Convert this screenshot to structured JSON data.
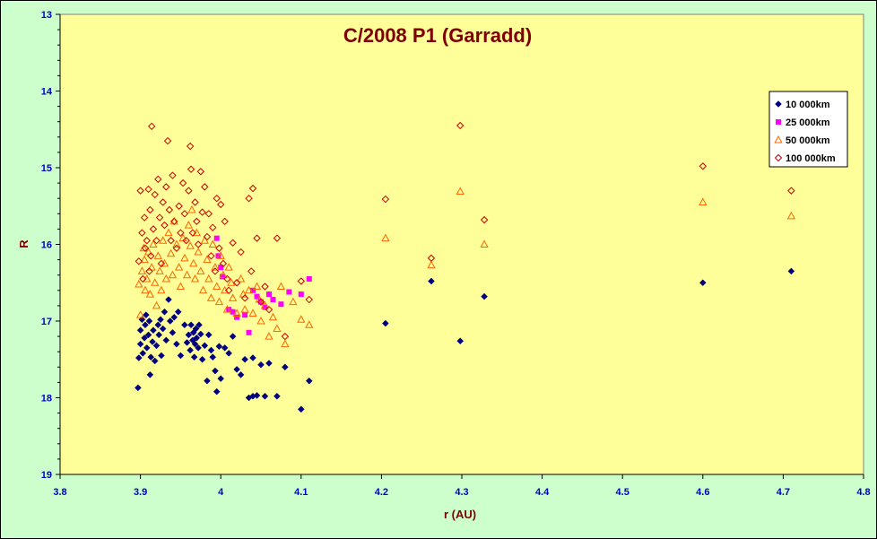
{
  "chart_data": {
    "type": "scatter",
    "title": "C/2008 P1 (Garradd)",
    "xlabel": "r (AU)",
    "ylabel": "R",
    "xlim": [
      3.8,
      4.8
    ],
    "ylim": [
      13,
      19
    ],
    "y_inverted": true,
    "x_ticks": [
      "3.8",
      "3.9",
      "4",
      "4.1",
      "4.2",
      "4.3",
      "4.4",
      "4.5",
      "4.6",
      "4.7",
      "4.8"
    ],
    "y_ticks": [
      "13",
      "14",
      "15",
      "16",
      "17",
      "18",
      "19"
    ],
    "grid": false,
    "legend_position": "right",
    "plot_background": "#ffff99",
    "outer_background": "#ccffcc",
    "series": [
      {
        "name": "10 000km",
        "marker": "diamond-filled",
        "color": "#000080",
        "points": [
          [
            3.897,
            17.87
          ],
          [
            3.898,
            17.48
          ],
          [
            3.9,
            17.3
          ],
          [
            3.9,
            17.12
          ],
          [
            3.902,
            16.98
          ],
          [
            3.903,
            17.42
          ],
          [
            3.905,
            17.22
          ],
          [
            3.906,
            17.05
          ],
          [
            3.907,
            16.92
          ],
          [
            3.908,
            17.35
          ],
          [
            3.91,
            17.18
          ],
          [
            3.911,
            17.0
          ],
          [
            3.912,
            17.7
          ],
          [
            3.913,
            17.47
          ],
          [
            3.915,
            17.27
          ],
          [
            3.916,
            17.12
          ],
          [
            3.918,
            17.52
          ],
          [
            3.92,
            17.32
          ],
          [
            3.922,
            17.05
          ],
          [
            3.923,
            17.18
          ],
          [
            3.925,
            16.98
          ],
          [
            3.926,
            17.45
          ],
          [
            3.928,
            17.1
          ],
          [
            3.93,
            16.88
          ],
          [
            3.932,
            17.25
          ],
          [
            3.935,
            16.72
          ],
          [
            3.937,
            17.0
          ],
          [
            3.94,
            17.15
          ],
          [
            3.942,
            16.95
          ],
          [
            3.945,
            17.3
          ],
          [
            3.947,
            16.88
          ],
          [
            3.95,
            17.45
          ],
          [
            3.955,
            17.05
          ],
          [
            3.958,
            17.28
          ],
          [
            3.96,
            17.18
          ],
          [
            3.962,
            17.38
          ],
          [
            3.963,
            17.05
          ],
          [
            3.965,
            17.25
          ],
          [
            3.966,
            17.15
          ],
          [
            3.967,
            17.47
          ],
          [
            3.968,
            17.3
          ],
          [
            3.969,
            17.1
          ],
          [
            3.97,
            17.22
          ],
          [
            3.972,
            17.35
          ],
          [
            3.973,
            17.05
          ],
          [
            3.975,
            17.17
          ],
          [
            3.977,
            17.5
          ],
          [
            3.98,
            17.32
          ],
          [
            3.983,
            17.78
          ],
          [
            3.985,
            17.18
          ],
          [
            3.988,
            17.38
          ],
          [
            3.99,
            17.47
          ],
          [
            3.993,
            17.65
          ],
          [
            3.995,
            17.92
          ],
          [
            3.998,
            17.33
          ],
          [
            4.0,
            17.75
          ],
          [
            4.005,
            17.35
          ],
          [
            4.01,
            17.42
          ],
          [
            4.015,
            17.2
          ],
          [
            4.02,
            17.63
          ],
          [
            4.025,
            17.7
          ],
          [
            4.03,
            17.5
          ],
          [
            4.035,
            18.0
          ],
          [
            4.04,
            17.98
          ],
          [
            4.04,
            17.48
          ],
          [
            4.045,
            17.97
          ],
          [
            4.05,
            17.57
          ],
          [
            4.055,
            17.98
          ],
          [
            4.06,
            17.55
          ],
          [
            4.07,
            17.98
          ],
          [
            4.08,
            17.6
          ],
          [
            4.1,
            18.15
          ],
          [
            4.11,
            17.78
          ],
          [
            4.205,
            17.03
          ],
          [
            4.262,
            16.48
          ],
          [
            4.298,
            17.26
          ],
          [
            4.328,
            16.68
          ],
          [
            4.6,
            16.5
          ],
          [
            4.71,
            16.35
          ]
        ]
      },
      {
        "name": "25 000km",
        "marker": "square-filled",
        "color": "#ff00ff",
        "points": [
          [
            3.995,
            15.92
          ],
          [
            3.997,
            16.15
          ],
          [
            4.0,
            16.3
          ],
          [
            4.002,
            16.42
          ],
          [
            4.01,
            16.85
          ],
          [
            4.015,
            16.88
          ],
          [
            4.02,
            16.95
          ],
          [
            4.03,
            16.92
          ],
          [
            4.035,
            17.15
          ],
          [
            4.04,
            16.6
          ],
          [
            4.045,
            16.68
          ],
          [
            4.05,
            16.75
          ],
          [
            4.055,
            16.82
          ],
          [
            4.06,
            16.65
          ],
          [
            4.065,
            16.72
          ],
          [
            4.075,
            16.78
          ],
          [
            4.085,
            16.62
          ],
          [
            4.1,
            16.65
          ],
          [
            4.11,
            16.45
          ]
        ]
      },
      {
        "name": "50 000km",
        "marker": "triangle-open",
        "color": "#ff6600",
        "points": [
          [
            3.898,
            16.52
          ],
          [
            3.9,
            16.92
          ],
          [
            3.902,
            16.35
          ],
          [
            3.904,
            16.05
          ],
          [
            3.905,
            16.2
          ],
          [
            3.906,
            16.6
          ],
          [
            3.908,
            16.45
          ],
          [
            3.91,
            16.1
          ],
          [
            3.912,
            16.65
          ],
          [
            3.914,
            16.3
          ],
          [
            3.916,
            16.0
          ],
          [
            3.918,
            16.5
          ],
          [
            3.92,
            16.8
          ],
          [
            3.922,
            16.15
          ],
          [
            3.924,
            16.35
          ],
          [
            3.926,
            16.6
          ],
          [
            3.928,
            15.95
          ],
          [
            3.93,
            16.25
          ],
          [
            3.932,
            16.45
          ],
          [
            3.935,
            15.85
          ],
          [
            3.938,
            16.12
          ],
          [
            3.94,
            16.4
          ],
          [
            3.942,
            15.7
          ],
          [
            3.945,
            16.0
          ],
          [
            3.948,
            16.3
          ],
          [
            3.95,
            16.55
          ],
          [
            3.953,
            15.92
          ],
          [
            3.955,
            16.18
          ],
          [
            3.958,
            16.4
          ],
          [
            3.96,
            15.75
          ],
          [
            3.962,
            16.02
          ],
          [
            3.964,
            15.55
          ],
          [
            3.966,
            16.25
          ],
          [
            3.968,
            16.45
          ],
          [
            3.97,
            15.85
          ],
          [
            3.972,
            16.1
          ],
          [
            3.975,
            16.35
          ],
          [
            3.978,
            16.6
          ],
          [
            3.98,
            15.95
          ],
          [
            3.983,
            16.2
          ],
          [
            3.985,
            16.45
          ],
          [
            3.988,
            16.7
          ],
          [
            3.99,
            16.0
          ],
          [
            3.993,
            16.3
          ],
          [
            3.995,
            16.55
          ],
          [
            3.998,
            16.75
          ],
          [
            4.0,
            16.15
          ],
          [
            4.003,
            16.4
          ],
          [
            4.005,
            16.6
          ],
          [
            4.008,
            16.85
          ],
          [
            4.01,
            16.3
          ],
          [
            4.013,
            16.5
          ],
          [
            4.015,
            16.7
          ],
          [
            4.02,
            16.9
          ],
          [
            4.025,
            16.45
          ],
          [
            4.028,
            16.65
          ],
          [
            4.03,
            16.85
          ],
          [
            4.035,
            16.6
          ],
          [
            4.04,
            16.9
          ],
          [
            4.045,
            16.55
          ],
          [
            4.048,
            16.72
          ],
          [
            4.05,
            17.0
          ],
          [
            4.055,
            16.8
          ],
          [
            4.06,
            17.2
          ],
          [
            4.065,
            16.95
          ],
          [
            4.07,
            17.1
          ],
          [
            4.075,
            16.55
          ],
          [
            4.08,
            17.3
          ],
          [
            4.09,
            16.75
          ],
          [
            4.1,
            16.98
          ],
          [
            4.11,
            17.05
          ],
          [
            4.205,
            15.92
          ],
          [
            4.262,
            16.27
          ],
          [
            4.298,
            15.31
          ],
          [
            4.328,
            16.0
          ],
          [
            4.6,
            15.45
          ],
          [
            4.71,
            15.63
          ]
        ]
      },
      {
        "name": "100 000km",
        "marker": "diamond-open",
        "color": "#cc0000",
        "points": [
          [
            3.898,
            16.22
          ],
          [
            3.9,
            15.3
          ],
          [
            3.902,
            15.85
          ],
          [
            3.903,
            16.45
          ],
          [
            3.905,
            15.65
          ],
          [
            3.906,
            16.05
          ],
          [
            3.908,
            15.95
          ],
          [
            3.91,
            15.28
          ],
          [
            3.911,
            16.35
          ],
          [
            3.912,
            15.55
          ],
          [
            3.913,
            16.15
          ],
          [
            3.914,
            14.46
          ],
          [
            3.916,
            15.8
          ],
          [
            3.918,
            15.35
          ],
          [
            3.92,
            15.95
          ],
          [
            3.922,
            15.15
          ],
          [
            3.924,
            15.65
          ],
          [
            3.926,
            16.25
          ],
          [
            3.928,
            15.45
          ],
          [
            3.93,
            15.75
          ],
          [
            3.932,
            15.25
          ],
          [
            3.934,
            14.65
          ],
          [
            3.936,
            15.55
          ],
          [
            3.938,
            15.95
          ],
          [
            3.94,
            15.1
          ],
          [
            3.942,
            15.7
          ],
          [
            3.945,
            16.05
          ],
          [
            3.948,
            15.5
          ],
          [
            3.95,
            15.85
          ],
          [
            3.953,
            15.2
          ],
          [
            3.955,
            15.6
          ],
          [
            3.957,
            15.95
          ],
          [
            3.96,
            15.3
          ],
          [
            3.962,
            14.72
          ],
          [
            3.963,
            15.02
          ],
          [
            3.965,
            15.85
          ],
          [
            3.968,
            15.45
          ],
          [
            3.97,
            15.7
          ],
          [
            3.972,
            16.0
          ],
          [
            3.975,
            15.05
          ],
          [
            3.977,
            15.58
          ],
          [
            3.98,
            15.25
          ],
          [
            3.983,
            15.9
          ],
          [
            3.985,
            15.6
          ],
          [
            3.988,
            16.15
          ],
          [
            3.99,
            15.78
          ],
          [
            3.993,
            16.35
          ],
          [
            3.995,
            15.4
          ],
          [
            3.998,
            16.05
          ],
          [
            4.0,
            15.48
          ],
          [
            4.003,
            16.25
          ],
          [
            4.005,
            15.7
          ],
          [
            4.008,
            16.45
          ],
          [
            4.01,
            16.6
          ],
          [
            4.015,
            15.98
          ],
          [
            4.02,
            16.5
          ],
          [
            4.025,
            16.1
          ],
          [
            4.03,
            16.7
          ],
          [
            4.035,
            15.4
          ],
          [
            4.038,
            16.35
          ],
          [
            4.04,
            15.27
          ],
          [
            4.045,
            15.92
          ],
          [
            4.05,
            16.75
          ],
          [
            4.055,
            16.55
          ],
          [
            4.06,
            16.85
          ],
          [
            4.07,
            15.92
          ],
          [
            4.08,
            17.2
          ],
          [
            4.1,
            16.48
          ],
          [
            4.11,
            16.72
          ],
          [
            4.205,
            15.41
          ],
          [
            4.262,
            16.18
          ],
          [
            4.298,
            14.45
          ],
          [
            4.328,
            15.68
          ],
          [
            4.6,
            14.98
          ],
          [
            4.71,
            15.3
          ]
        ]
      }
    ]
  }
}
